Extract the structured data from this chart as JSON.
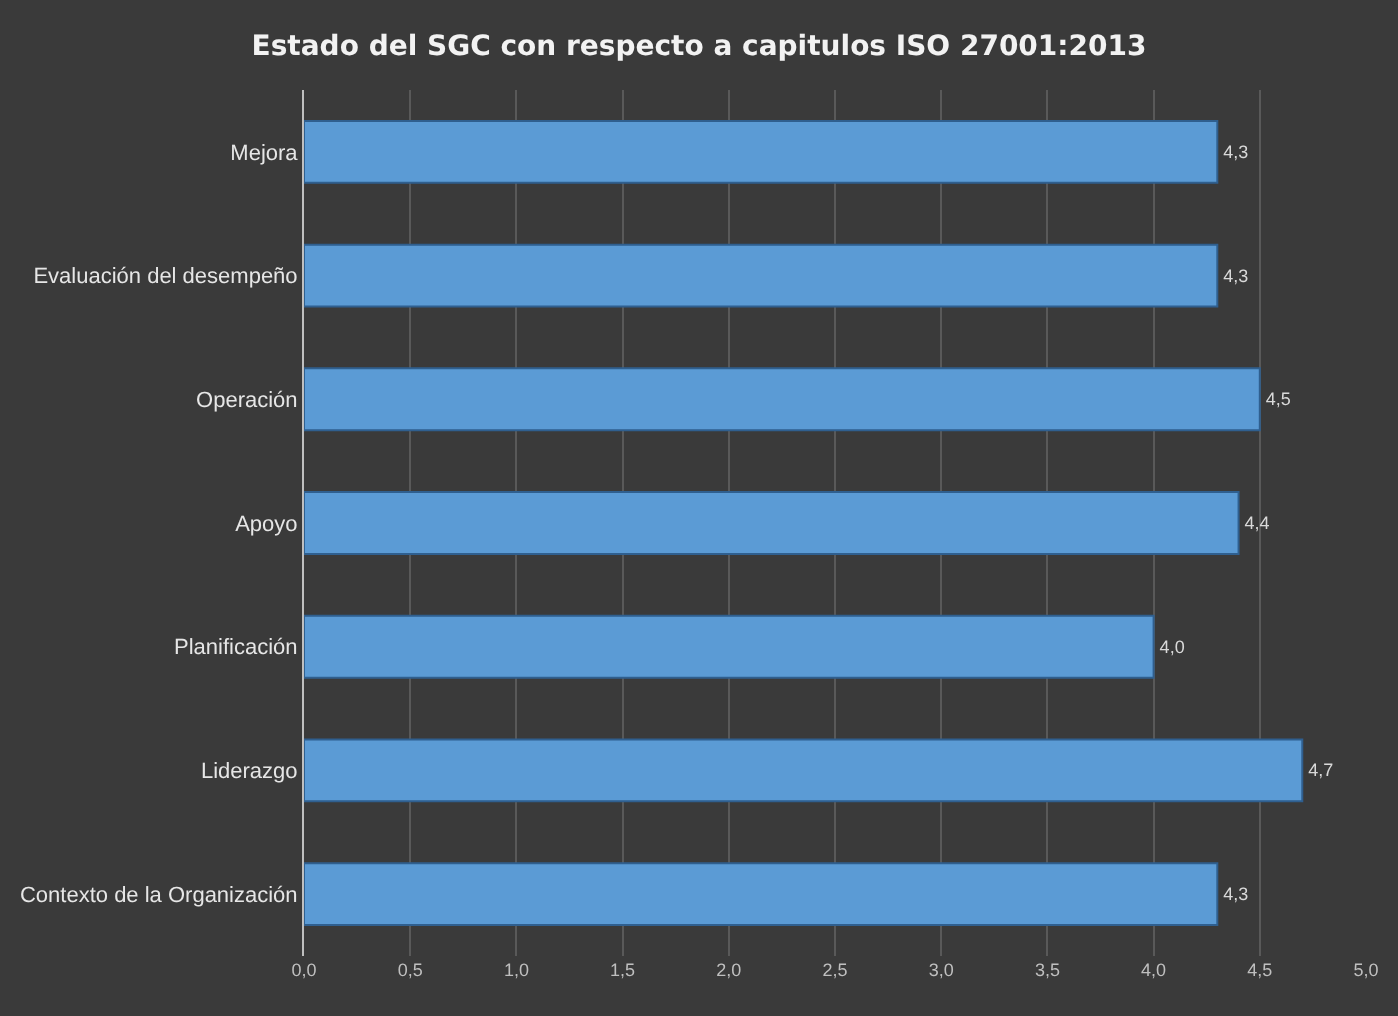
{
  "chart_data": {
    "type": "bar",
    "orientation": "horizontal",
    "title": "Estado del SGC con respecto a capitulos ISO 27001:2013",
    "categories": [
      "Mejora",
      "Evaluación del desempeño",
      "Operación",
      "Apoyo",
      "Planificación",
      "Liderazgo",
      "Contexto de la Organización"
    ],
    "values": [
      4.3,
      4.3,
      4.5,
      4.4,
      4.0,
      4.7,
      4.3
    ],
    "value_labels": [
      "4,3",
      "4,3",
      "4,5",
      "4,4",
      "4,0",
      "4,7",
      "4,3"
    ],
    "color": "#5b9bd5",
    "xlim": [
      0,
      5
    ],
    "xticks": [
      {
        "value": 0,
        "label": "0,0"
      },
      {
        "value": 0.5,
        "label": "0,5"
      },
      {
        "value": 1,
        "label": "1,0"
      },
      {
        "value": 1.5,
        "label": "1,5"
      },
      {
        "value": 2,
        "label": "2,0"
      },
      {
        "value": 2.5,
        "label": "2,5"
      },
      {
        "value": 3,
        "label": "3,0"
      },
      {
        "value": 3.5,
        "label": "3,5"
      },
      {
        "value": 4,
        "label": "4,0"
      },
      {
        "value": 4.5,
        "label": "4,5"
      },
      {
        "value": 5,
        "label": "5,0"
      }
    ],
    "grid": "x"
  }
}
